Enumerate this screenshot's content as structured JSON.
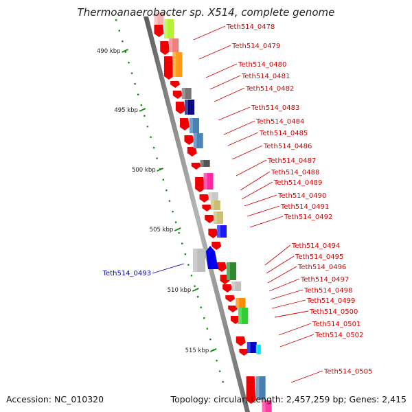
{
  "header": {
    "title": "Thermoanaerobacter sp. X514, complete genome"
  },
  "footer": {
    "accession": "Accession: NC_010320",
    "summary": "Topology: circular; Length: 2,457,259 bp; Genes: 2,415"
  },
  "scale": {
    "ticks": [
      "490 kbp",
      "495 kbp",
      "500 kbp",
      "505 kbp",
      "510 kbp",
      "515 kbp"
    ]
  },
  "genes": {
    "labels": [
      "Teth514_0478",
      "Teth514_0479",
      "Teth514_0480",
      "Teth514_0481",
      "Teth514_0482",
      "Teth514_0483",
      "Teth514_0484",
      "Teth514_0485",
      "Teth514_0486",
      "Teth514_0487",
      "Teth514_0488",
      "Teth514_0489",
      "Teth514_0490",
      "Teth514_0491",
      "Teth514_0492",
      "Teth514_0494",
      "Teth514_0495",
      "Teth514_0496",
      "Teth514_0497",
      "Teth514_0498",
      "Teth514_0499",
      "Teth514_0500",
      "Teth514_0501",
      "Teth514_0502",
      "Teth514_0505"
    ],
    "highlighted": "Teth514_0493"
  },
  "colors": {
    "label": "#d40000",
    "highlight": "#0000b0",
    "axis": "#1a8a1a",
    "backbone": "#8c8c8c",
    "strand_arrow": "#ee0000"
  }
}
